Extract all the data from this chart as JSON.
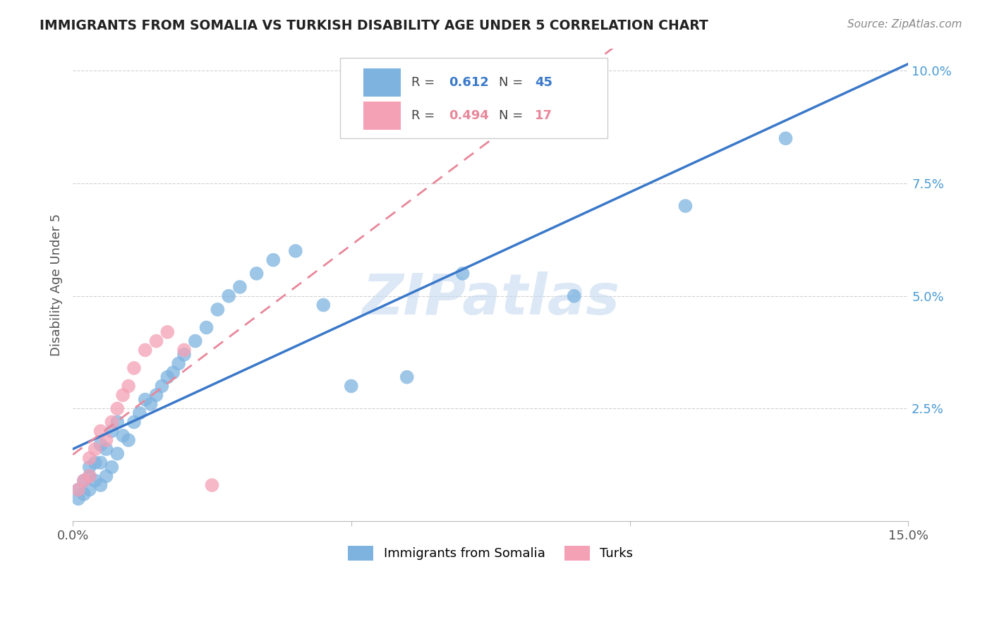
{
  "title": "IMMIGRANTS FROM SOMALIA VS TURKISH DISABILITY AGE UNDER 5 CORRELATION CHART",
  "source": "Source: ZipAtlas.com",
  "ylabel": "Disability Age Under 5",
  "xlim": [
    0.0,
    0.15
  ],
  "ylim": [
    0.0,
    0.105
  ],
  "somalia_R": 0.612,
  "somalia_N": 45,
  "turks_R": 0.494,
  "turks_N": 17,
  "blue_color": "#7eb3e0",
  "pink_color": "#f4a0b5",
  "blue_line_color": "#3a78c9",
  "pink_line_color": "#e8879a",
  "watermark_color": "#c5d9ef",
  "somalia_x": [
    0.001,
    0.001,
    0.002,
    0.002,
    0.003,
    0.003,
    0.003,
    0.004,
    0.004,
    0.005,
    0.005,
    0.005,
    0.006,
    0.006,
    0.007,
    0.007,
    0.008,
    0.008,
    0.009,
    0.01,
    0.011,
    0.012,
    0.013,
    0.014,
    0.015,
    0.016,
    0.017,
    0.018,
    0.019,
    0.02,
    0.022,
    0.024,
    0.026,
    0.028,
    0.03,
    0.033,
    0.036,
    0.04,
    0.045,
    0.05,
    0.06,
    0.07,
    0.09,
    0.11,
    0.128
  ],
  "somalia_y": [
    0.005,
    0.007,
    0.006,
    0.009,
    0.007,
    0.01,
    0.012,
    0.009,
    0.013,
    0.008,
    0.013,
    0.017,
    0.01,
    0.016,
    0.012,
    0.02,
    0.015,
    0.022,
    0.019,
    0.018,
    0.022,
    0.024,
    0.027,
    0.026,
    0.028,
    0.03,
    0.032,
    0.033,
    0.035,
    0.037,
    0.04,
    0.043,
    0.047,
    0.05,
    0.052,
    0.055,
    0.058,
    0.06,
    0.048,
    0.03,
    0.032,
    0.055,
    0.05,
    0.07,
    0.085
  ],
  "turks_x": [
    0.001,
    0.002,
    0.003,
    0.003,
    0.004,
    0.005,
    0.006,
    0.007,
    0.008,
    0.009,
    0.01,
    0.011,
    0.013,
    0.015,
    0.017,
    0.02,
    0.025
  ],
  "turks_y": [
    0.007,
    0.009,
    0.01,
    0.014,
    0.016,
    0.02,
    0.018,
    0.022,
    0.025,
    0.028,
    0.03,
    0.034,
    0.038,
    0.04,
    0.042,
    0.038,
    0.008
  ]
}
